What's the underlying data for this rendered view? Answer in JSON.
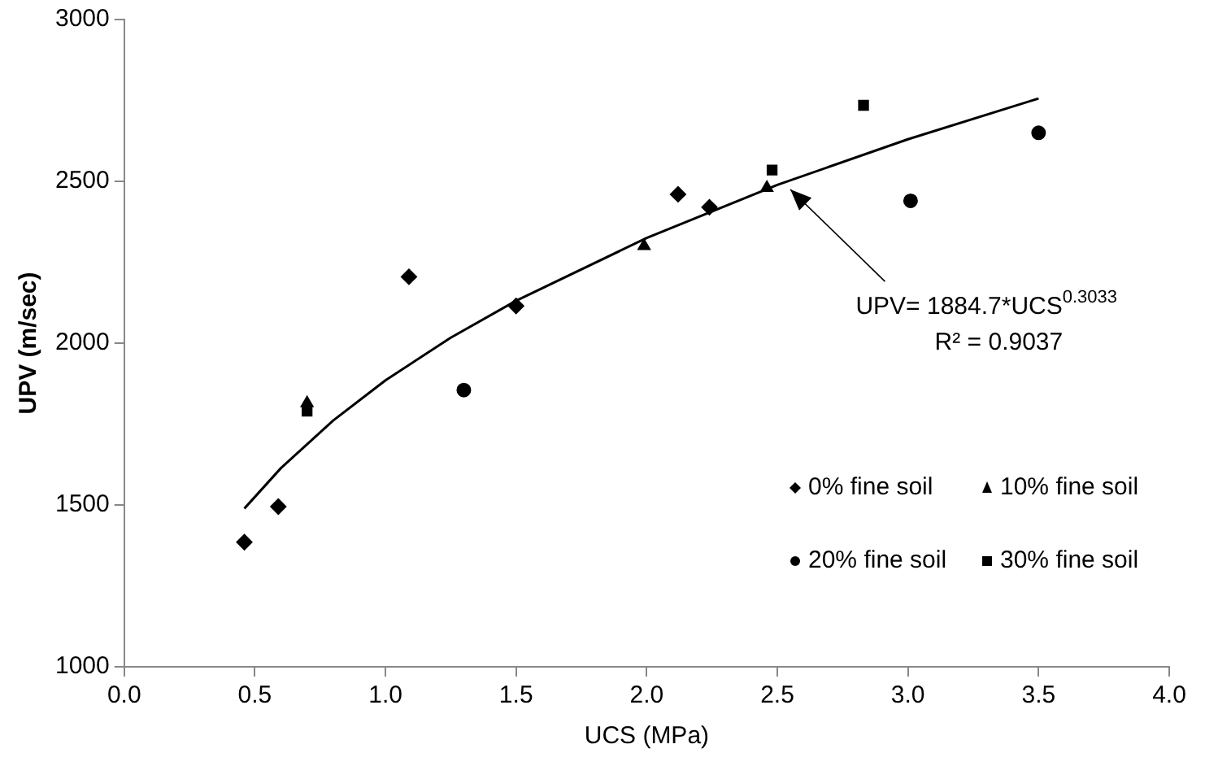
{
  "chart_data": {
    "type": "scatter",
    "xlabel": "UCS (MPa)",
    "ylabel": "UPV (m/sec)",
    "xlim": [
      0,
      4
    ],
    "xticks": [
      {
        "value": 0,
        "label": "0.0"
      },
      {
        "value": 0.5,
        "label": "0.5"
      },
      {
        "value": 1,
        "label": "1.0"
      },
      {
        "value": 1.5,
        "label": "1.5"
      },
      {
        "value": 2,
        "label": "2.0"
      },
      {
        "value": 2.5,
        "label": "2.5"
      },
      {
        "value": 3,
        "label": "3.0"
      },
      {
        "value": 3.5,
        "label": "3.5"
      },
      {
        "value": 4,
        "label": "4.0"
      }
    ],
    "ylim": [
      1000,
      3000
    ],
    "yticks": [
      1000,
      1500,
      2000,
      2500,
      3000
    ],
    "grid": false,
    "legend": "bottom right",
    "series": [
      {
        "name": "0% fine soil",
        "color": "#000000",
        "marker": "diamond",
        "x": [
          0.46,
          0.59,
          1.09,
          1.5,
          2.12,
          2.24
        ],
        "values": [
          1385,
          1495,
          2205,
          2115,
          2460,
          2420
        ]
      },
      {
        "name": "10% fine soil",
        "color": "#000000",
        "marker": "triangle",
        "x": [
          0.7,
          1.99,
          2.46
        ],
        "values": [
          1815,
          2300,
          2480
        ]
      },
      {
        "name": "20% fine soil",
        "color": "#000000",
        "marker": "circle",
        "x": [
          1.3,
          3.01,
          3.5
        ],
        "values": [
          1855,
          2440,
          2650
        ]
      },
      {
        "name": "30% fine soil",
        "color": "#000000",
        "marker": "square",
        "x": [
          0.7,
          2.48,
          2.83
        ],
        "values": [
          1790,
          2535,
          2735
        ]
      },
      {
        "type": "line",
        "color": "#000000",
        "marker": "none",
        "line_style": "solid",
        "x": [
          0.46,
          0.6,
          0.8,
          1.0,
          1.25,
          1.5,
          2.0,
          2.5,
          3.0,
          3.5
        ],
        "values": [
          1489,
          1614,
          1761,
          1885,
          2017,
          2131,
          2325,
          2489,
          2630,
          2756
        ]
      }
    ],
    "annotations": [
      {
        "text": "UPV= 1884.7*UCS$^{0.3033}$",
        "x": 2.55,
        "y": 2475
      },
      "R² = 0.9037"
    ]
  }
}
